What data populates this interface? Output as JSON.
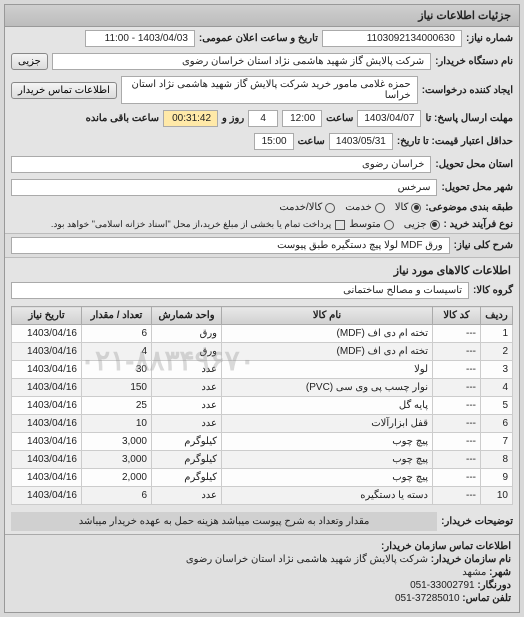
{
  "panel_title": "جزئیات اطلاعات نیاز",
  "row1": {
    "label_num": "شماره نیاز:",
    "need_number": "1103092134000630",
    "label_announce": "تاریخ و ساعت اعلان عمومی:",
    "announce_value": "1403/04/03 - 11:00"
  },
  "row2": {
    "label_buyer": "نام دستگاه خریدار:",
    "buyer_value": "شرکت پالایش گاز شهید هاشمی نژاد   استان خراسان رضوی",
    "partial_btn": "جزیی"
  },
  "row3": {
    "label_req": "ایجاد کننده درخواست:",
    "req_value": "حمزه غلامی مامور خرید شرکت پالایش گاز شهید هاشمی نژاد   استان خراسا",
    "contact_btn": "اطلاعات تماس خریدار"
  },
  "row4": {
    "label_deadline": "مهلت ارسال پاسخ: تا",
    "date1": "1403/04/07",
    "label_time": "ساعت",
    "time1": "12:00",
    "remain_days": "4",
    "label_days": "روز و",
    "remain_time": "00:31:42",
    "label_remain": "ساعت باقی مانده"
  },
  "row5": {
    "label_valid": "حداقل اعتبار قیمت: تا تاریخ:",
    "date2": "1403/05/31",
    "time2": "15:00"
  },
  "row6": {
    "label": "استان محل تحویل:",
    "value": "خراسان رضوی"
  },
  "row7": {
    "label": "شهر محل تحویل:",
    "value": "سرخس"
  },
  "row8": {
    "label": "طبقه بندی موضوعی:",
    "opt1": "کالا",
    "opt2": "خدمت",
    "opt3": "کالا/خدمت"
  },
  "row9": {
    "label": "نوع فرآیند خرید :",
    "opt1": "جزیی",
    "opt2": "متوسط",
    "note": "پرداخت تمام یا بخشی از مبلغ خرید،از محل \"اسناد خزانه اسلامی\" خواهد بود."
  },
  "row10": {
    "label": "شرح کلی نیاز:",
    "value": "ورق MDF لولا پیچ دستگیره طبق پیوست"
  },
  "goods_title": "اطلاعات کالاهای مورد نیاز",
  "row11": {
    "label": "گروه کالا:",
    "value": "تاسیسات و مصالح ساختمانی"
  },
  "table": {
    "headers": [
      "ردیف",
      "کد کالا",
      "نام کالا",
      "واحد شمارش",
      "تعداد / مقدار",
      "تاریخ نیاز"
    ],
    "col_widths": [
      "32px",
      "48px",
      "auto",
      "70px",
      "70px",
      "70px"
    ],
    "rows": [
      [
        "1",
        "---",
        "تخته ام دی اف (MDF)",
        "ورق",
        "6",
        "1403/04/16"
      ],
      [
        "2",
        "---",
        "تخته ام دی اف (MDF)",
        "ورق",
        "4",
        "1403/04/16"
      ],
      [
        "3",
        "---",
        "لولا",
        "عدد",
        "30",
        "1403/04/16"
      ],
      [
        "4",
        "---",
        "نوار چسب پی وی سی (PVC)",
        "عدد",
        "150",
        "1403/04/16"
      ],
      [
        "5",
        "---",
        "پایه گل",
        "عدد",
        "25",
        "1403/04/16"
      ],
      [
        "6",
        "---",
        "قفل ابزارآلات",
        "عدد",
        "10",
        "1403/04/16"
      ],
      [
        "7",
        "---",
        "پیچ چوب",
        "کیلوگرم",
        "3,000",
        "1403/04/16"
      ],
      [
        "8",
        "---",
        "پیچ چوب",
        "کیلوگرم",
        "3,000",
        "1403/04/16"
      ],
      [
        "9",
        "---",
        "پیچ چوب",
        "کیلوگرم",
        "2,000",
        "1403/04/16"
      ],
      [
        "10",
        "---",
        "دسته یا دستگیره",
        "عدد",
        "6",
        "1403/04/16"
      ]
    ]
  },
  "row12": {
    "label": "توضیحات خریدار:",
    "value": "مقدار وتعداد به شرح پیوست میباشد هزینه حمل به عهده خریدار میباشد"
  },
  "footer": {
    "title": "اطلاعات تماس سازمان خریدار:",
    "l1_label": "نام سازمان خریدار:",
    "l1_val": "شرکت پالایش گاز شهید هاشمی نژاد استان خراسان رضوی",
    "l2_label": "شهر:",
    "l2_val": "مشهد",
    "l3_label": "دورنگار:",
    "l3_val": "33002791-051",
    "l4_label": "تلفن تماس:",
    "l4_val": "37285010-051"
  },
  "watermark": "۰۲۱-۸۸۳۴۹۶۷۰",
  "colors": {
    "bg": "#d8d8d8",
    "panel_bg": "#e4e4e4",
    "box_bg": "#ffffff",
    "border": "#999999"
  }
}
